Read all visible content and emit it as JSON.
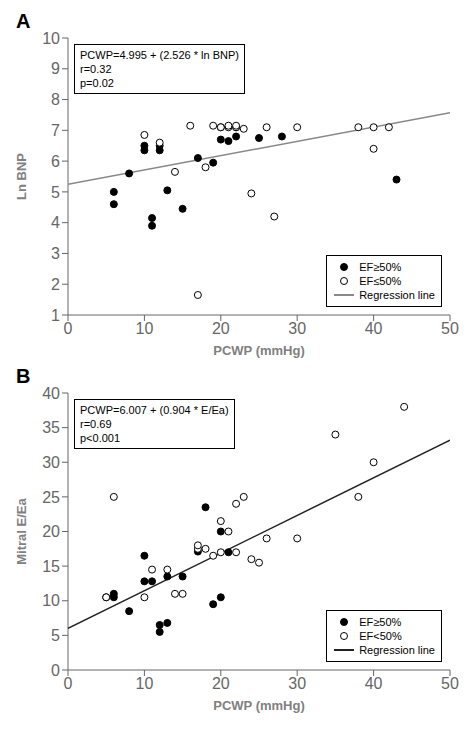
{
  "chart_data": [
    {
      "type": "scatter",
      "title": "A",
      "x_label": "PCWP (mmHg)",
      "y_label": "Ln BNP",
      "annotations": [
        "PCWP=4.995 + (2.526 * ln BNP)",
        "r=0.32",
        "p=0.02"
      ],
      "xlim": [
        0,
        50
      ],
      "xticks": [
        0,
        10,
        20,
        30,
        40,
        50
      ],
      "ylim": [
        1,
        10
      ],
      "yticks": [
        1,
        2,
        3,
        4,
        5,
        6,
        7,
        8,
        9,
        10
      ],
      "grid": false,
      "legend": "lower right",
      "series": [
        {
          "name": "EF≥50%",
          "type": "scatter",
          "marker": "filled",
          "color": "#000000",
          "x": [
            6,
            6,
            8,
            10,
            10,
            11,
            11,
            12,
            12,
            13,
            15,
            17,
            19,
            20,
            20,
            21,
            22,
            25,
            28,
            43
          ],
          "values": [
            5.0,
            4.6,
            5.6,
            6.35,
            6.5,
            3.9,
            4.15,
            6.35,
            6.5,
            5.05,
            4.45,
            6.1,
            5.95,
            7.1,
            6.7,
            6.65,
            6.8,
            6.75,
            6.8,
            5.4
          ]
        },
        {
          "name": "EF≤50%",
          "type": "scatter",
          "marker": "open",
          "color": "#000000",
          "x": [
            10,
            12,
            14,
            16,
            17,
            18,
            19,
            20,
            21,
            21,
            22,
            22,
            22,
            23,
            24,
            26,
            27,
            30,
            38,
            40,
            40,
            42
          ],
          "values": [
            6.85,
            6.6,
            5.65,
            7.15,
            1.65,
            5.8,
            7.15,
            7.1,
            7.1,
            7.15,
            7.1,
            7.1,
            7.15,
            7.05,
            4.95,
            7.1,
            4.2,
            7.1,
            7.1,
            7.1,
            6.4,
            7.1
          ]
        },
        {
          "name": "Regression line",
          "type": "line",
          "color": "#888888",
          "x": [
            0,
            50
          ],
          "values": [
            5.25,
            7.57
          ]
        }
      ]
    },
    {
      "type": "scatter",
      "title": "B",
      "x_label": "PCWP (mmHg)",
      "y_label": "Mitral E/Ea",
      "annotations": [
        "PCWP=6.007 + (0.904 * E/Ea)",
        "r=0.69",
        "p<0.001"
      ],
      "xlim": [
        0,
        50
      ],
      "xticks": [
        0,
        10,
        20,
        30,
        40,
        50
      ],
      "ylim": [
        0,
        40
      ],
      "yticks": [
        0,
        5,
        10,
        15,
        20,
        25,
        30,
        35,
        40
      ],
      "grid": false,
      "legend": "lower right",
      "series": [
        {
          "name": "EF≥50%",
          "type": "scatter",
          "marker": "filled",
          "color": "#000000",
          "x": [
            5,
            6,
            6,
            8,
            10,
            10,
            11,
            12,
            12,
            13,
            13,
            15,
            17,
            18,
            19,
            20,
            20,
            21
          ],
          "values": [
            10.5,
            11.0,
            10.5,
            8.5,
            16.5,
            12.8,
            12.8,
            5.5,
            6.5,
            13.5,
            6.8,
            13.5,
            17.1,
            23.5,
            9.5,
            10.5,
            20.0,
            17.0
          ]
        },
        {
          "name": "EF<50%",
          "type": "scatter",
          "marker": "open",
          "color": "#000000",
          "x": [
            5,
            6,
            10,
            11,
            13,
            14,
            15,
            17,
            17,
            18,
            19,
            20,
            20,
            21,
            22,
            22,
            23,
            24,
            25,
            26,
            30,
            35,
            38,
            40,
            44
          ],
          "values": [
            10.5,
            25.0,
            10.5,
            14.5,
            14.5,
            11.0,
            11.0,
            17.5,
            18.0,
            17.5,
            16.5,
            21.5,
            17.0,
            20.0,
            24.0,
            17.0,
            25.0,
            16.0,
            15.5,
            19.0,
            19.0,
            34.0,
            25.0,
            30.0,
            38.0
          ]
        },
        {
          "name": "Regression line",
          "type": "line",
          "color": "#222222",
          "x": [
            0,
            50
          ],
          "values": [
            6.0,
            33.2
          ]
        }
      ]
    }
  ]
}
